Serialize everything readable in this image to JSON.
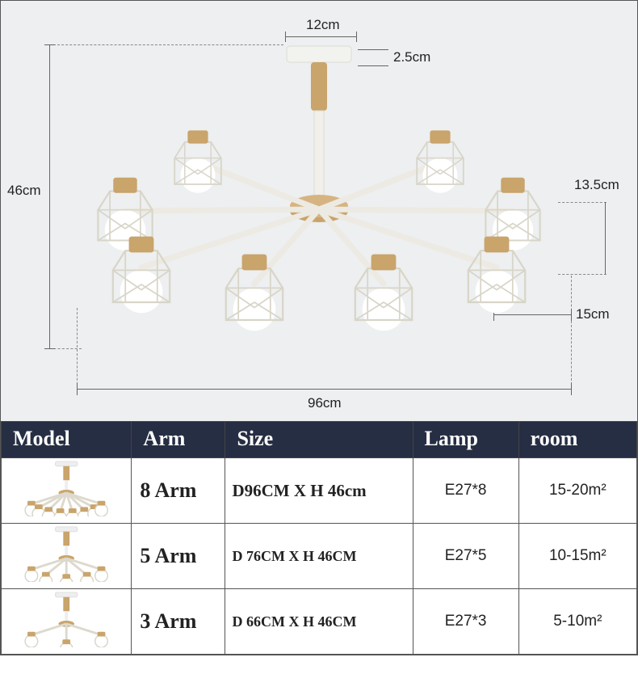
{
  "diagram": {
    "bg_color": "#edeff0",
    "label_color": "#222222",
    "line_color": "#666666",
    "label_fontsize": 17,
    "dims": {
      "height": {
        "text": "46cm"
      },
      "width": {
        "text": "96cm"
      },
      "cap_diameter": {
        "text": "12cm"
      },
      "cap_height": {
        "text": "2.5cm"
      },
      "shade_height": {
        "text": "13.5cm"
      },
      "shade_width": {
        "text": "15cm"
      }
    }
  },
  "chandelier_style": {
    "wood_color": "#c9a46b",
    "metal_color": "#f3f3f0",
    "wire_color": "#e2e0d8",
    "bulb_color": "#ffffff"
  },
  "table": {
    "header_bg": "#262e43",
    "header_fg": "#ffffff",
    "header_fontsize": 26,
    "columns": [
      "Model",
      "Arm",
      "Size",
      "Lamp",
      "room"
    ],
    "rows": [
      {
        "arms": 8,
        "arm_label": "8 Arm",
        "size": "D96CM X H 46cm",
        "lamp": "E27*8",
        "room_val": "15-20",
        "room_unit": "m²"
      },
      {
        "arms": 5,
        "arm_label": "5 Arm",
        "size": "D 76CM X H 46CM",
        "lamp": "E27*5",
        "room_val": "10-15",
        "room_unit": "m²"
      },
      {
        "arms": 3,
        "arm_label": "3 Arm",
        "size": "D 66CM X H 46CM",
        "lamp": "E27*3",
        "room_val": "5-10",
        "room_unit": "m²"
      }
    ]
  }
}
